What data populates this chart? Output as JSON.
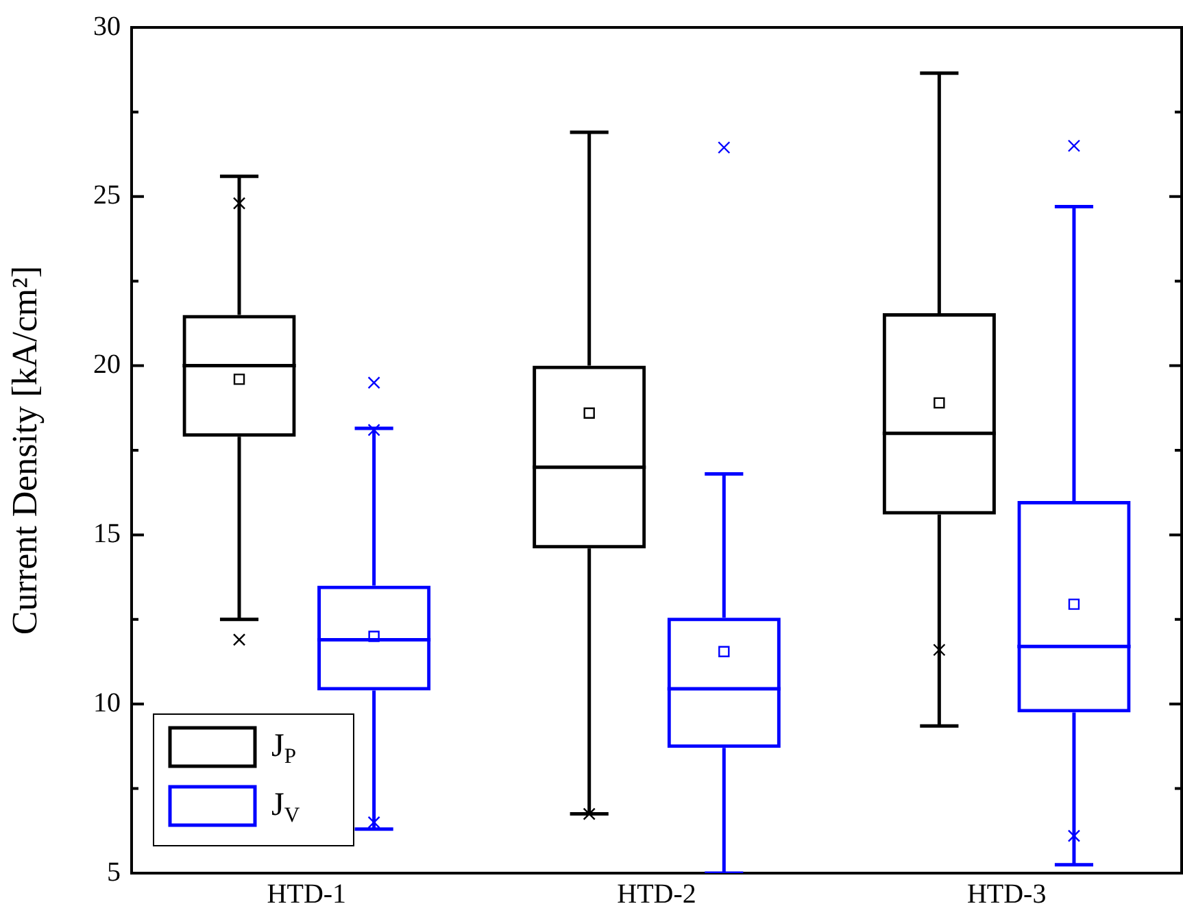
{
  "chart_data": {
    "type": "box",
    "ylabel": "Current Density [kA/cm²]",
    "categories": [
      "HTD-1",
      "HTD-2",
      "HTD-3"
    ],
    "ylim": [
      5,
      30
    ],
    "yticks": [
      5,
      10,
      15,
      20,
      25,
      30
    ],
    "grid": false,
    "legend": "bottom left",
    "series": [
      {
        "name": "J$_{P}$",
        "color": "#000000",
        "boxes": [
          {
            "low": 12.5,
            "q1": 17.9,
            "median": 20,
            "q3": 21.5,
            "high": 25.6,
            "mean": 19.6,
            "outliers": [
              24.8,
              11.9
            ]
          },
          {
            "low": 6.75,
            "q1": 14.6,
            "median": 17,
            "q3": 20,
            "high": 26.9,
            "mean": 18.6,
            "outliers": [
              6.75
            ]
          },
          {
            "low": 9.35,
            "q1": 15.6,
            "median": 18,
            "q3": 21.55,
            "high": 28.65,
            "mean": 18.9,
            "outliers": [
              11.6
            ]
          }
        ]
      },
      {
        "name": "J$_{V}$",
        "color": "#0000ff",
        "boxes": [
          {
            "low": 6.3,
            "q1": 10.4,
            "median": 11.9,
            "q3": 13.5,
            "high": 18.15,
            "mean": 12,
            "outliers": [
              18.1,
              6.5,
              19.5
            ]
          },
          {
            "low": 5,
            "q1": 8.7,
            "median": 10.45,
            "q3": 12.55,
            "high": 16.8,
            "mean": 11.55,
            "outliers": [
              26.45
            ]
          },
          {
            "low": 5.25,
            "q1": 9.75,
            "median": 11.7,
            "q3": 16,
            "high": 24.7,
            "mean": 12.95,
            "outliers": [
              26.5,
              6.1
            ]
          }
        ]
      }
    ]
  }
}
